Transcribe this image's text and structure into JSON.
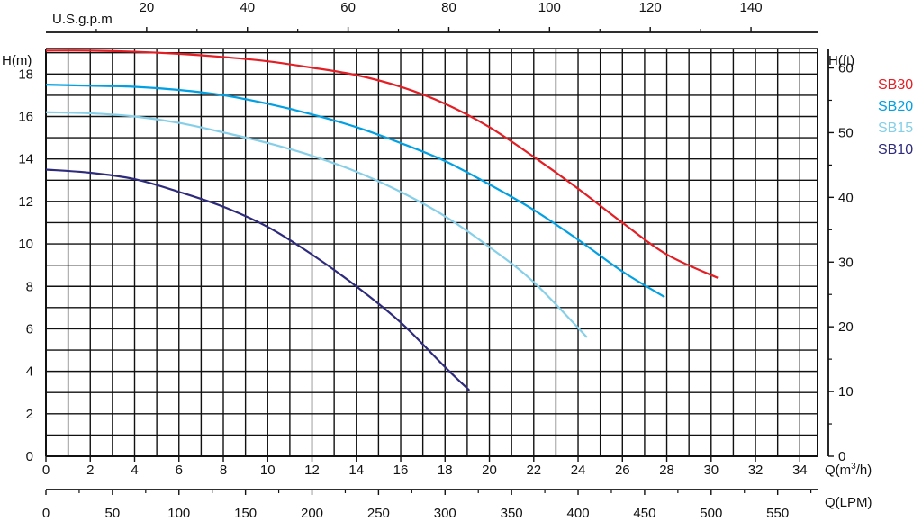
{
  "chart_data": {
    "type": "line",
    "title": "",
    "xlabel": "Q(m³/h)",
    "ylabel": "H(m)",
    "y2label": "H(ft)",
    "top_axis_label": "U.S.g.p.m",
    "bottom2_axis_label": "Q(LPM)",
    "xlim": [
      0,
      34.8
    ],
    "ylim": [
      0,
      19.2
    ],
    "grid": true,
    "legend_position": "right",
    "x_ticks": [
      "0",
      "2",
      "4",
      "6",
      "8",
      "10",
      "12",
      "14",
      "16",
      "18",
      "20",
      "22",
      "24",
      "26",
      "28",
      "30",
      "32",
      "34"
    ],
    "y_ticks": [
      "0",
      "2",
      "4",
      "6",
      "8",
      "10",
      "12",
      "14",
      "16",
      "18"
    ],
    "y2_ticks": [
      "0",
      "10",
      "20",
      "30",
      "40",
      "50",
      "60"
    ],
    "top_ticks": [
      "20",
      "40",
      "60",
      "80",
      "100",
      "120",
      "140"
    ],
    "lpm_ticks": [
      "0",
      "50",
      "100",
      "150",
      "200",
      "250",
      "300",
      "350",
      "400",
      "450",
      "500",
      "550"
    ],
    "series": [
      {
        "name": "SB30",
        "color": "#e31e24",
        "x": [
          0,
          2,
          4,
          6,
          8,
          10,
          12,
          14,
          16,
          18,
          20,
          22,
          24,
          26,
          28,
          30.3
        ],
        "y": [
          19.1,
          19.1,
          19.05,
          18.95,
          18.8,
          18.6,
          18.3,
          17.95,
          17.4,
          16.6,
          15.5,
          14.1,
          12.6,
          11.0,
          9.5,
          8.4
        ]
      },
      {
        "name": "SB20",
        "color": "#00a0e3",
        "x": [
          0,
          2,
          4,
          6,
          8,
          10,
          12,
          14,
          16,
          18,
          20,
          22,
          24,
          26,
          27.9
        ],
        "y": [
          17.5,
          17.45,
          17.4,
          17.25,
          17.0,
          16.6,
          16.1,
          15.5,
          14.75,
          13.9,
          12.8,
          11.6,
          10.2,
          8.7,
          7.5
        ]
      },
      {
        "name": "SB15",
        "color": "#86cfe8",
        "x": [
          0,
          2,
          4,
          6,
          8,
          10,
          12,
          14,
          16,
          18,
          20,
          22,
          24.4
        ],
        "y": [
          16.2,
          16.15,
          16.0,
          15.7,
          15.25,
          14.75,
          14.15,
          13.4,
          12.45,
          11.3,
          9.85,
          8.2,
          5.6
        ]
      },
      {
        "name": "SB10",
        "color": "#2e2b7c",
        "x": [
          0,
          2,
          4,
          6,
          8,
          10,
          12,
          14,
          16,
          18,
          19.1
        ],
        "y": [
          13.5,
          13.35,
          13.05,
          12.45,
          11.75,
          10.8,
          9.5,
          8.0,
          6.3,
          4.2,
          3.1
        ]
      }
    ]
  }
}
